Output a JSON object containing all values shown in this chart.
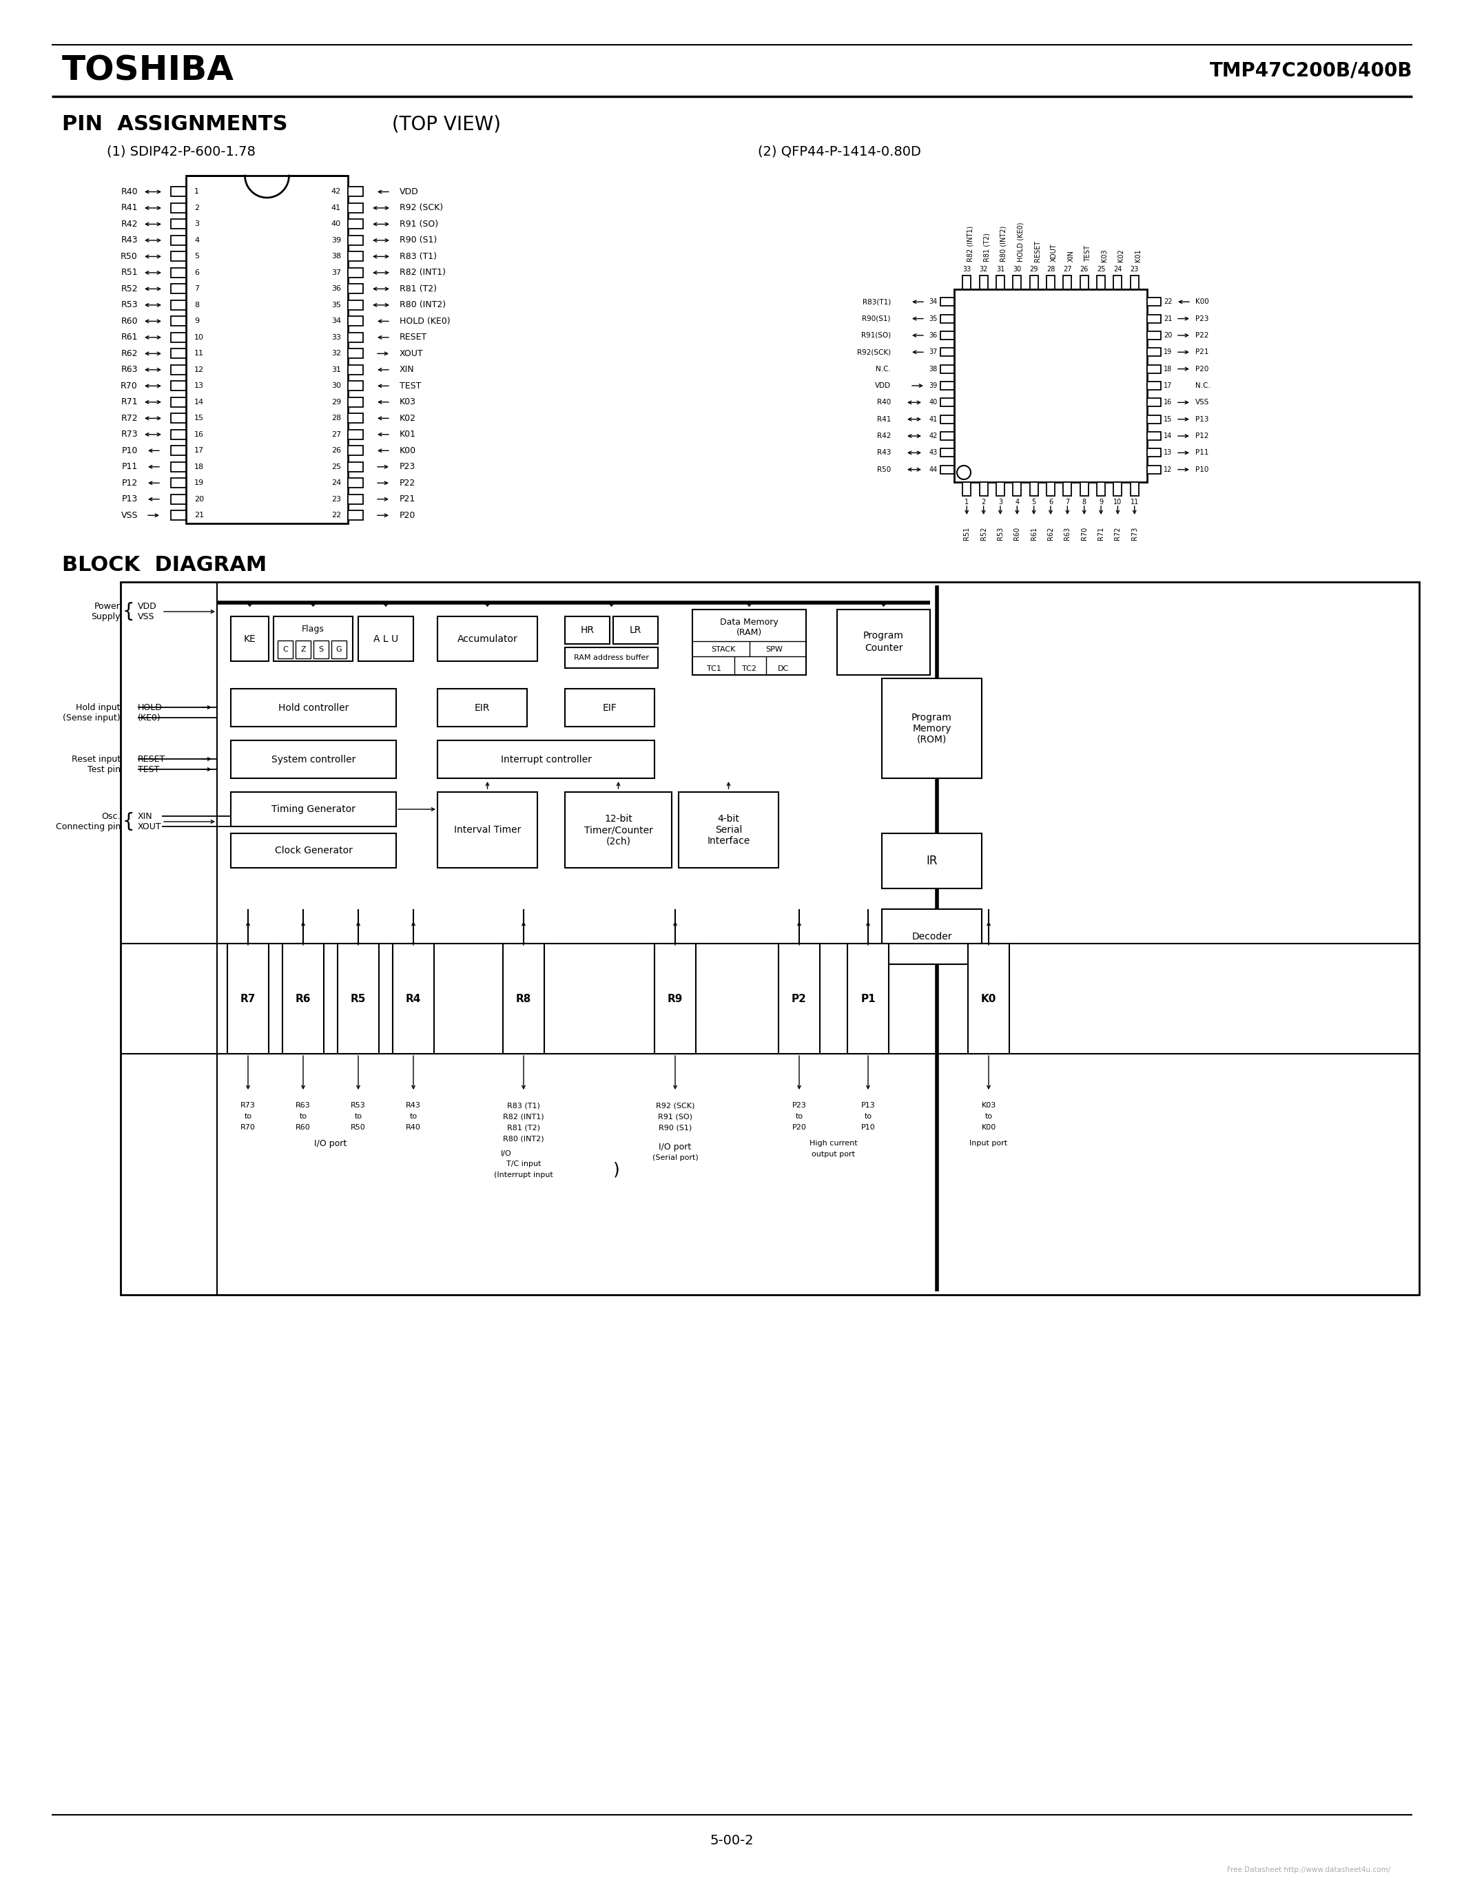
{
  "title_left": "TOSHIBA",
  "title_right": "TMP47C200B/400B",
  "pin_assignments_title_bold": "PIN  ASSIGNMENTS",
  "pin_assignments_title_normal": " (TOP VIEW)",
  "sdip_title": "(1) SDIP42-P-600-1.78",
  "qfp_title": "(2) QFP44-P-1414-0.80D",
  "block_diagram_title": "BLOCK  DIAGRAM",
  "footer": "5-00-2",
  "watermark": "Free Datasheet http://www.datasheet4u.com/",
  "sdip_left_pins": [
    [
      "R40",
      "1",
      "lr"
    ],
    [
      "R41",
      "2",
      "lr"
    ],
    [
      "R42",
      "3",
      "lr"
    ],
    [
      "R43",
      "4",
      "lr"
    ],
    [
      "R50",
      "5",
      "lr"
    ],
    [
      "R51",
      "6",
      "lr"
    ],
    [
      "R52",
      "7",
      "lr"
    ],
    [
      "R53",
      "8",
      "lr"
    ],
    [
      "R60",
      "9",
      "lr"
    ],
    [
      "R61",
      "10",
      "lr"
    ],
    [
      "R62",
      "11",
      "lr"
    ],
    [
      "R63",
      "12",
      "lr"
    ],
    [
      "R70",
      "13",
      "lr"
    ],
    [
      "R71",
      "14",
      "lr"
    ],
    [
      "R72",
      "15",
      "lr"
    ],
    [
      "R73",
      "16",
      "lr"
    ],
    [
      "P10",
      "17",
      "in"
    ],
    [
      "P11",
      "18",
      "in"
    ],
    [
      "P12",
      "19",
      "in"
    ],
    [
      "P13",
      "20",
      "in"
    ],
    [
      "VSS",
      "21",
      "out"
    ]
  ],
  "sdip_right_pins": [
    [
      "VDD",
      "42",
      "in"
    ],
    [
      "R92 (SCK)",
      "41",
      "lr"
    ],
    [
      "R91 (SO)",
      "40",
      "lr"
    ],
    [
      "R90 (S1)",
      "39",
      "lr"
    ],
    [
      "R83 (T1)",
      "38",
      "lr"
    ],
    [
      "R82 (INT1)",
      "37",
      "lr"
    ],
    [
      "R81 (T2)",
      "36",
      "lr"
    ],
    [
      "R80 (INT2)",
      "35",
      "lr"
    ],
    [
      "HOLD (KE0)",
      "34",
      "in"
    ],
    [
      "RESET",
      "33",
      "in"
    ],
    [
      "XOUT",
      "32",
      "out"
    ],
    [
      "XIN",
      "31",
      "in"
    ],
    [
      "TEST",
      "30",
      "in"
    ],
    [
      "K03",
      "29",
      "in"
    ],
    [
      "K02",
      "28",
      "in"
    ],
    [
      "K01",
      "27",
      "in"
    ],
    [
      "K00",
      "26",
      "in"
    ],
    [
      "P23",
      "25",
      "out"
    ],
    [
      "P22",
      "24",
      "out"
    ],
    [
      "P21",
      "23",
      "out"
    ],
    [
      "P20",
      "22",
      "out"
    ]
  ],
  "qfp_top_labels": [
    "R82 (INT1)",
    "R81 (T2)",
    "R80 (INT2)",
    "HOLD (KE0)",
    "RESET",
    "XOUT",
    "XIN",
    "TEST",
    "K03",
    "K02",
    "K01"
  ],
  "qfp_top_nums": [
    33,
    32,
    31,
    30,
    29,
    28,
    27,
    26,
    25,
    24,
    23
  ],
  "qfp_bottom_labels": [
    "R51",
    "R52",
    "R53",
    "R60",
    "R61",
    "R62",
    "R63",
    "R70",
    "R71",
    "R72",
    "R73"
  ],
  "qfp_bottom_nums": [
    1,
    2,
    3,
    4,
    5,
    6,
    7,
    8,
    9,
    10,
    11
  ],
  "qfp_left_labels": [
    "R83(T1)",
    "R90(S1)",
    "R91(SO)",
    "R92(SCK)",
    "N.C.",
    "VDD",
    "R40",
    "R41",
    "R42",
    "R43",
    "R50"
  ],
  "qfp_left_nums": [
    34,
    35,
    36,
    37,
    38,
    39,
    40,
    41,
    42,
    43,
    44
  ],
  "qfp_left_arrows": [
    "out",
    "out",
    "out",
    "out",
    "none",
    "in",
    "lr",
    "lr",
    "lr",
    "lr",
    "lr"
  ],
  "qfp_right_labels": [
    "K00",
    "P23",
    "P22",
    "P21",
    "P20",
    "N.C.",
    "VSS",
    "P13",
    "P12",
    "P11",
    "P10"
  ],
  "qfp_right_nums": [
    22,
    21,
    20,
    19,
    18,
    17,
    16,
    15,
    14,
    13,
    12
  ],
  "qfp_right_arrows": [
    "in",
    "out",
    "out",
    "out",
    "out",
    "none",
    "out",
    "out",
    "out",
    "out",
    "out"
  ],
  "background": "#ffffff"
}
